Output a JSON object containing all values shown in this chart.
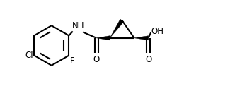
{
  "bg_color": "#ffffff",
  "line_color": "#000000",
  "line_width": 1.5,
  "fig_width": 3.49,
  "fig_height": 1.29,
  "dpi": 100,
  "xlim": [
    0,
    10
  ],
  "ylim": [
    0,
    3.7
  ]
}
